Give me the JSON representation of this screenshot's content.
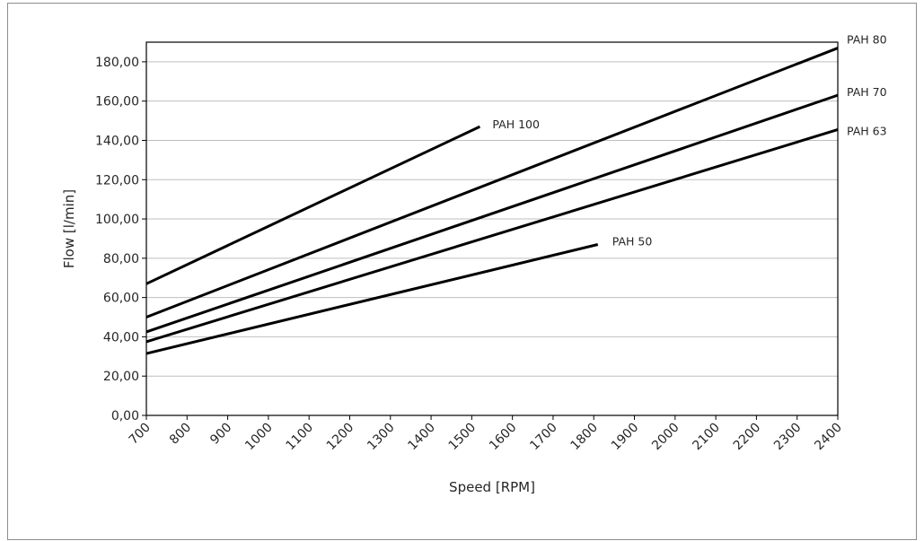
{
  "chart_data": {
    "type": "line",
    "title": "",
    "xlabel": "Speed [RPM]",
    "ylabel": "Flow [l/min]",
    "xlim": [
      700,
      2400
    ],
    "ylim": [
      0,
      190
    ],
    "x_ticks": [
      "700",
      "800",
      "900",
      "1000",
      "1100",
      "1200",
      "1300",
      "1400",
      "1500",
      "1600",
      "1700",
      "1800",
      "1900",
      "2000",
      "2100",
      "2200",
      "2300",
      "2400"
    ],
    "y_ticks": [
      "0,00",
      "20,00",
      "40,00",
      "60,00",
      "80,00",
      "100,00",
      "120,00",
      "140,00",
      "160,00",
      "180,00"
    ],
    "grid": "horizontal",
    "legend": "inline labels at line ends",
    "line_color": "#000000",
    "series": [
      {
        "name": "PAH 100",
        "x": [
          700,
          1520
        ],
        "y": [
          67,
          147
        ]
      },
      {
        "name": "PAH 80",
        "x": [
          700,
          2400
        ],
        "y": [
          50,
          187
        ]
      },
      {
        "name": "PAH 70",
        "x": [
          700,
          2400
        ],
        "y": [
          42.5,
          163
        ]
      },
      {
        "name": "PAH 63",
        "x": [
          700,
          2400
        ],
        "y": [
          37.5,
          145.5
        ]
      },
      {
        "name": "PAH 50",
        "x": [
          700,
          1810
        ],
        "y": [
          31.5,
          87
        ]
      }
    ]
  }
}
